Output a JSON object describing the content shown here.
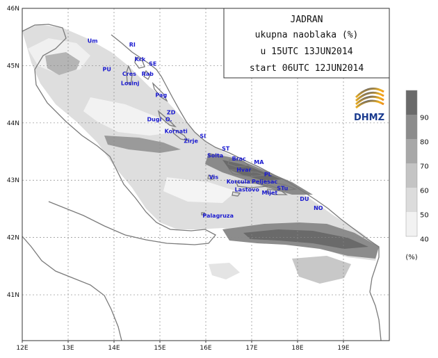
{
  "title": {
    "line1": "JADRAN",
    "line2": "ukupna naoblaka (%)",
    "line3": "u 15UTC 13JUN2014",
    "line4": "start 06UTC 12JUN2014"
  },
  "logo": {
    "text": "DHMZ"
  },
  "legend": {
    "values": [
      "40",
      "50",
      "60",
      "70",
      "80",
      "90"
    ],
    "unit": "(%)",
    "colors": [
      "#f2f2f2",
      "#dcdcdc",
      "#c4c4c4",
      "#a8a8a8",
      "#8c8c8c",
      "#6a6a6a"
    ]
  },
  "axes": {
    "lon_labels": [
      "12E",
      "13E",
      "14E",
      "15E",
      "16E",
      "17E",
      "18E",
      "19E"
    ],
    "lat_labels": [
      "46N",
      "45N",
      "44N",
      "43N",
      "42N",
      "41N"
    ],
    "lon_range": [
      12,
      20
    ],
    "lat_range": [
      40.2,
      46
    ]
  },
  "cities": [
    {
      "name": "Um",
      "lon": 13.42,
      "lat": 45.4
    },
    {
      "name": "RI",
      "lon": 14.33,
      "lat": 45.33
    },
    {
      "name": "Krk",
      "lon": 14.45,
      "lat": 45.08
    },
    {
      "name": "SE",
      "lon": 14.76,
      "lat": 45.0
    },
    {
      "name": "PU",
      "lon": 13.75,
      "lat": 44.9
    },
    {
      "name": "Cres",
      "lon": 14.18,
      "lat": 44.82
    },
    {
      "name": "Rab",
      "lon": 14.6,
      "lat": 44.82
    },
    {
      "name": "Losinj",
      "lon": 14.15,
      "lat": 44.66
    },
    {
      "name": "Pag",
      "lon": 14.9,
      "lat": 44.45
    },
    {
      "name": "ZD",
      "lon": 15.15,
      "lat": 44.15
    },
    {
      "name": "Dugi",
      "lon": 14.72,
      "lat": 44.03
    },
    {
      "name": "O.",
      "lon": 15.12,
      "lat": 44.03
    },
    {
      "name": "Kornati",
      "lon": 15.1,
      "lat": 43.82
    },
    {
      "name": "SI",
      "lon": 15.87,
      "lat": 43.74
    },
    {
      "name": "Zirje",
      "lon": 15.52,
      "lat": 43.65
    },
    {
      "name": "ST",
      "lon": 16.35,
      "lat": 43.52
    },
    {
      "name": "Solta",
      "lon": 16.03,
      "lat": 43.4
    },
    {
      "name": "Brac",
      "lon": 16.57,
      "lat": 43.34
    },
    {
      "name": "MA",
      "lon": 17.05,
      "lat": 43.28
    },
    {
      "name": "Hvar",
      "lon": 16.67,
      "lat": 43.15
    },
    {
      "name": "PL",
      "lon": 17.27,
      "lat": 43.07
    },
    {
      "name": "Vis",
      "lon": 16.07,
      "lat": 43.02
    },
    {
      "name": "Korcula",
      "lon": 16.45,
      "lat": 42.94
    },
    {
      "name": "Peljesac",
      "lon": 17.0,
      "lat": 42.94
    },
    {
      "name": "STu",
      "lon": 17.55,
      "lat": 42.83
    },
    {
      "name": "Lastovo",
      "lon": 16.63,
      "lat": 42.8
    },
    {
      "name": "Mljet",
      "lon": 17.22,
      "lat": 42.75
    },
    {
      "name": "DU",
      "lon": 18.05,
      "lat": 42.64
    },
    {
      "name": "NO",
      "lon": 18.35,
      "lat": 42.48
    },
    {
      "name": "Palagruza",
      "lon": 15.93,
      "lat": 42.35
    }
  ]
}
